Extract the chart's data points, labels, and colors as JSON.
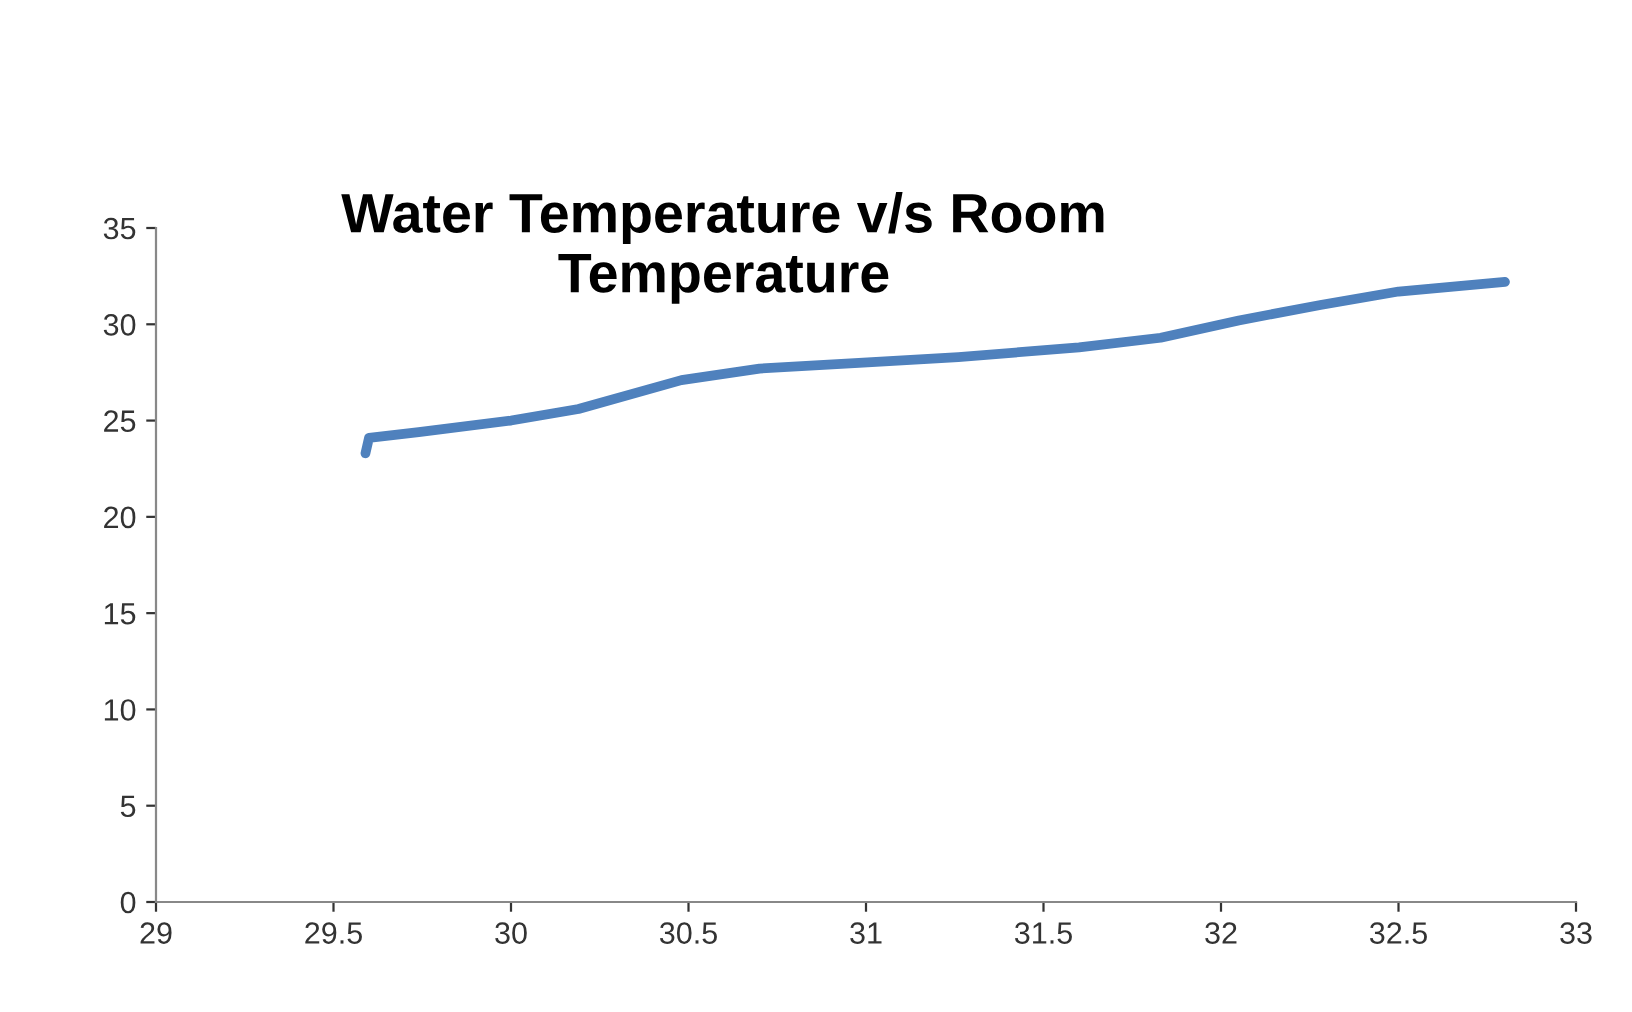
{
  "chart_data": {
    "type": "line",
    "title": "Water Temperature v/s Room\nTemperature",
    "x": [
      29.59,
      29.6,
      29.74,
      30.0,
      30.19,
      30.48,
      30.7,
      30.98,
      31.26,
      31.6,
      31.83,
      32.05,
      32.28,
      32.5,
      32.8
    ],
    "series": [
      {
        "color": "#4f81bd",
        "values": [
          23.3,
          24.1,
          24.4,
          25.0,
          25.6,
          27.1,
          27.7,
          28.0,
          28.3,
          28.8,
          29.3,
          30.2,
          31.0,
          31.7,
          32.2
        ]
      }
    ],
    "xlim": [
      29,
      33
    ],
    "xticks": [
      29,
      29.5,
      30,
      30.5,
      31,
      31.5,
      32,
      32.5,
      33
    ],
    "ylim": [
      0,
      35
    ],
    "yticks": [
      0,
      5,
      10,
      15,
      20,
      25,
      30,
      35
    ],
    "grid": false,
    "legend": false,
    "marker": "none",
    "line_style": "solid"
  }
}
